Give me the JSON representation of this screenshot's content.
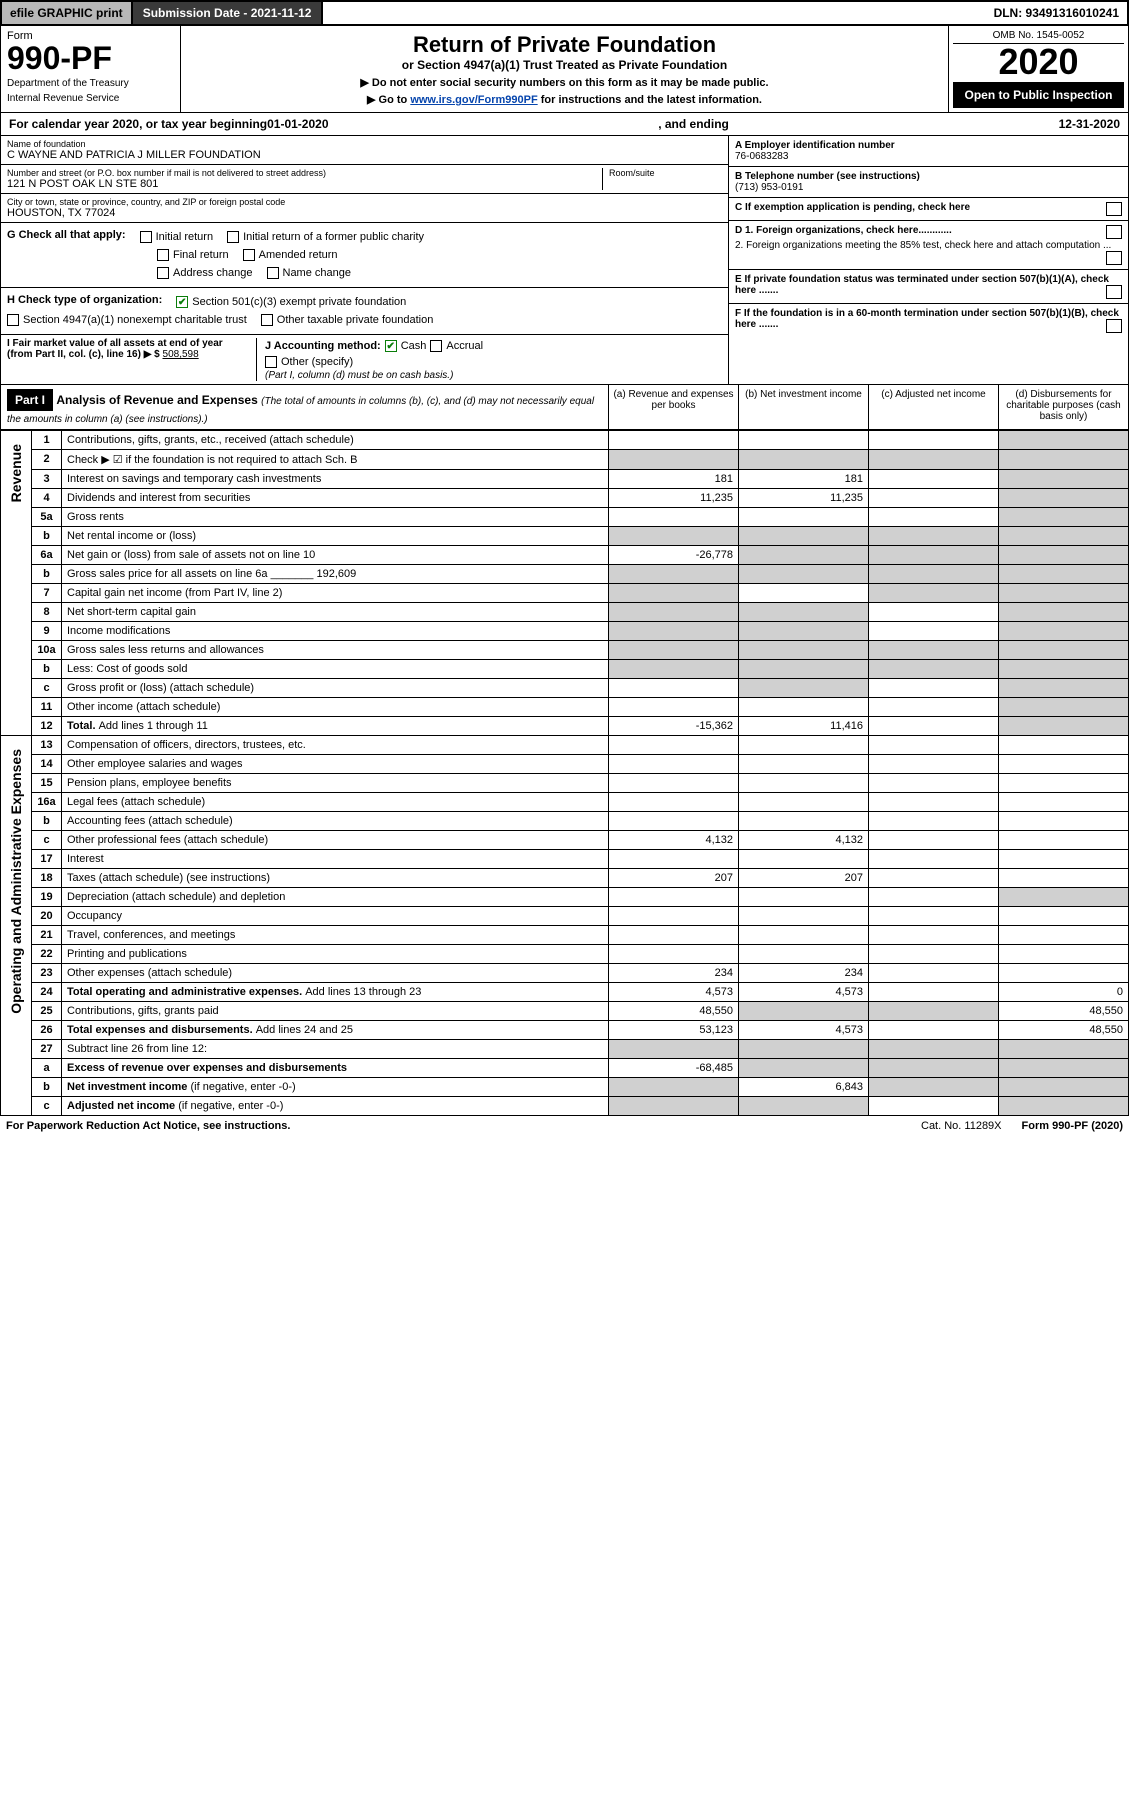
{
  "topbar": {
    "efile": "efile GRAPHIC print",
    "submission": "Submission Date - 2021-11-12",
    "dln": "DLN: 93491316010241"
  },
  "header": {
    "form_word": "Form",
    "form_no": "990-PF",
    "dept": "Department of the Treasury",
    "irs": "Internal Revenue Service",
    "title": "Return of Private Foundation",
    "subtitle": "or Section 4947(a)(1) Trust Treated as Private Foundation",
    "note1": "▶ Do not enter social security numbers on this form as it may be made public.",
    "note2_prefix": "▶ Go to ",
    "note2_link": "www.irs.gov/Form990PF",
    "note2_suffix": " for instructions and the latest information.",
    "omb": "OMB No. 1545-0052",
    "year": "2020",
    "open": "Open to Public Inspection"
  },
  "cal": {
    "prefix": "For calendar year 2020, or tax year beginning ",
    "begin": "01-01-2020",
    "mid": " , and ending ",
    "end": "12-31-2020"
  },
  "foundation": {
    "name_label": "Name of foundation",
    "name": "C WAYNE AND PATRICIA J MILLER FOUNDATION",
    "addr_label": "Number and street (or P.O. box number if mail is not delivered to street address)",
    "addr": "121 N POST OAK LN STE 801",
    "room_label": "Room/suite",
    "city_label": "City or town, state or province, country, and ZIP or foreign postal code",
    "city": "HOUSTON, TX  77024"
  },
  "right_info": {
    "a_label": "A Employer identification number",
    "a_val": "76-0683283",
    "b_label": "B Telephone number (see instructions)",
    "b_val": "(713) 953-0191",
    "c_label": "C If exemption application is pending, check here",
    "d1": "D 1. Foreign organizations, check here............",
    "d2": "2. Foreign organizations meeting the 85% test, check here and attach computation ...",
    "e": "E  If private foundation status was terminated under section 507(b)(1)(A), check here .......",
    "f": "F  If the foundation is in a 60-month termination under section 507(b)(1)(B), check here .......",
    "g_label": "G Check all that apply:",
    "g_opts": [
      "Initial return",
      "Initial return of a former public charity",
      "Final return",
      "Amended return",
      "Address change",
      "Name change"
    ],
    "h_label": "H Check type of organization:",
    "h1": "Section 501(c)(3) exempt private foundation",
    "h2": "Section 4947(a)(1) nonexempt charitable trust",
    "h3": "Other taxable private foundation",
    "i_label": "I Fair market value of all assets at end of year (from Part II, col. (c), line 16) ▶ $",
    "i_val": "508,598",
    "j_label": "J Accounting method:",
    "j_cash": "Cash",
    "j_accrual": "Accrual",
    "j_other": "Other (specify)",
    "j_note": "(Part I, column (d) must be on cash basis.)"
  },
  "part1": {
    "label": "Part I",
    "title": "Analysis of Revenue and Expenses",
    "desc": "(The total of amounts in columns (b), (c), and (d) may not necessarily equal the amounts in column (a) (see instructions).)",
    "cols": {
      "a": "(a) Revenue and expenses per books",
      "b": "(b) Net investment income",
      "c": "(c) Adjusted net income",
      "d": "(d) Disbursements for charitable purposes (cash basis only)"
    }
  },
  "side_labels": {
    "rev": "Revenue",
    "oae": "Operating and Administrative Expenses"
  },
  "rows": [
    {
      "n": "1",
      "d": "Contributions, gifts, grants, etc., received (attach schedule)",
      "a": "",
      "b": "",
      "c": "",
      "dd": "",
      "shade_d": true
    },
    {
      "n": "2",
      "d": "Check ▶ ☑ if the foundation is not required to attach Sch. B",
      "a": "",
      "b": "",
      "c": "",
      "dd": "",
      "shade_a": true,
      "shade_b": true,
      "shade_c": true,
      "shade_d": true,
      "bold_not": true
    },
    {
      "n": "3",
      "d": "Interest on savings and temporary cash investments",
      "a": "181",
      "b": "181",
      "c": "",
      "dd": "",
      "shade_d": true
    },
    {
      "n": "4",
      "d": "Dividends and interest from securities",
      "a": "11,235",
      "b": "11,235",
      "c": "",
      "dd": "",
      "shade_d": true
    },
    {
      "n": "5a",
      "d": "Gross rents",
      "a": "",
      "b": "",
      "c": "",
      "dd": "",
      "shade_d": true
    },
    {
      "n": "b",
      "d": "Net rental income or (loss)",
      "a": "",
      "b": "",
      "c": "",
      "dd": "",
      "shade_a": true,
      "shade_b": true,
      "shade_c": true,
      "shade_d": true
    },
    {
      "n": "6a",
      "d": "Net gain or (loss) from sale of assets not on line 10",
      "a": "-26,778",
      "b": "",
      "c": "",
      "dd": "",
      "shade_b": true,
      "shade_c": true,
      "shade_d": true
    },
    {
      "n": "b",
      "d": "Gross sales price for all assets on line 6a _______ 192,609",
      "a": "",
      "b": "",
      "c": "",
      "dd": "",
      "shade_a": true,
      "shade_b": true,
      "shade_c": true,
      "shade_d": true
    },
    {
      "n": "7",
      "d": "Capital gain net income (from Part IV, line 2)",
      "a": "",
      "b": "",
      "c": "",
      "dd": "",
      "shade_a": true,
      "shade_c": true,
      "shade_d": true
    },
    {
      "n": "8",
      "d": "Net short-term capital gain",
      "a": "",
      "b": "",
      "c": "",
      "dd": "",
      "shade_a": true,
      "shade_b": true,
      "shade_d": true
    },
    {
      "n": "9",
      "d": "Income modifications",
      "a": "",
      "b": "",
      "c": "",
      "dd": "",
      "shade_a": true,
      "shade_b": true,
      "shade_d": true
    },
    {
      "n": "10a",
      "d": "Gross sales less returns and allowances",
      "a": "",
      "b": "",
      "c": "",
      "dd": "",
      "shade_a": true,
      "shade_b": true,
      "shade_c": true,
      "shade_d": true
    },
    {
      "n": "b",
      "d": "Less: Cost of goods sold",
      "a": "",
      "b": "",
      "c": "",
      "dd": "",
      "shade_a": true,
      "shade_b": true,
      "shade_c": true,
      "shade_d": true
    },
    {
      "n": "c",
      "d": "Gross profit or (loss) (attach schedule)",
      "a": "",
      "b": "",
      "c": "",
      "dd": "",
      "shade_b": true,
      "shade_d": true
    },
    {
      "n": "11",
      "d": "Other income (attach schedule)",
      "a": "",
      "b": "",
      "c": "",
      "dd": "",
      "shade_d": true
    },
    {
      "n": "12",
      "d_bold": "Total. ",
      "d": "Add lines 1 through 11",
      "a": "-15,362",
      "b": "11,416",
      "c": "",
      "dd": "",
      "shade_d": true,
      "bold": true
    },
    {
      "n": "13",
      "d": "Compensation of officers, directors, trustees, etc.",
      "a": "",
      "b": "",
      "c": "",
      "dd": ""
    },
    {
      "n": "14",
      "d": "Other employee salaries and wages",
      "a": "",
      "b": "",
      "c": "",
      "dd": ""
    },
    {
      "n": "15",
      "d": "Pension plans, employee benefits",
      "a": "",
      "b": "",
      "c": "",
      "dd": ""
    },
    {
      "n": "16a",
      "d": "Legal fees (attach schedule)",
      "a": "",
      "b": "",
      "c": "",
      "dd": ""
    },
    {
      "n": "b",
      "d": "Accounting fees (attach schedule)",
      "a": "",
      "b": "",
      "c": "",
      "dd": ""
    },
    {
      "n": "c",
      "d": "Other professional fees (attach schedule)",
      "a": "4,132",
      "b": "4,132",
      "c": "",
      "dd": ""
    },
    {
      "n": "17",
      "d": "Interest",
      "a": "",
      "b": "",
      "c": "",
      "dd": ""
    },
    {
      "n": "18",
      "d": "Taxes (attach schedule) (see instructions)",
      "a": "207",
      "b": "207",
      "c": "",
      "dd": ""
    },
    {
      "n": "19",
      "d": "Depreciation (attach schedule) and depletion",
      "a": "",
      "b": "",
      "c": "",
      "dd": "",
      "shade_d": true
    },
    {
      "n": "20",
      "d": "Occupancy",
      "a": "",
      "b": "",
      "c": "",
      "dd": ""
    },
    {
      "n": "21",
      "d": "Travel, conferences, and meetings",
      "a": "",
      "b": "",
      "c": "",
      "dd": ""
    },
    {
      "n": "22",
      "d": "Printing and publications",
      "a": "",
      "b": "",
      "c": "",
      "dd": ""
    },
    {
      "n": "23",
      "d": "Other expenses (attach schedule)",
      "a": "234",
      "b": "234",
      "c": "",
      "dd": ""
    },
    {
      "n": "24",
      "d_bold": "Total operating and administrative expenses. ",
      "d": "Add lines 13 through 23",
      "a": "4,573",
      "b": "4,573",
      "c": "",
      "dd": "0",
      "bold": true
    },
    {
      "n": "25",
      "d": "Contributions, gifts, grants paid",
      "a": "48,550",
      "b": "",
      "c": "",
      "dd": "48,550",
      "shade_b": true,
      "shade_c": true
    },
    {
      "n": "26",
      "d_bold": "Total expenses and disbursements. ",
      "d": "Add lines 24 and 25",
      "a": "53,123",
      "b": "4,573",
      "c": "",
      "dd": "48,550",
      "bold": true
    },
    {
      "n": "27",
      "d": "Subtract line 26 from line 12:",
      "a": "",
      "b": "",
      "c": "",
      "dd": "",
      "shade_a": true,
      "shade_b": true,
      "shade_c": true,
      "shade_d": true
    },
    {
      "n": "a",
      "d_bold": "Excess of revenue over expenses and disbursements",
      "d": "",
      "a": "-68,485",
      "b": "",
      "c": "",
      "dd": "",
      "shade_b": true,
      "shade_c": true,
      "shade_d": true,
      "bold": true
    },
    {
      "n": "b",
      "d_bold": "Net investment income ",
      "d": "(if negative, enter -0-)",
      "a": "",
      "b": "6,843",
      "c": "",
      "dd": "",
      "shade_a": true,
      "shade_c": true,
      "shade_d": true,
      "bold": true
    },
    {
      "n": "c",
      "d_bold": "Adjusted net income ",
      "d": "(if negative, enter -0-)",
      "a": "",
      "b": "",
      "c": "",
      "dd": "",
      "shade_a": true,
      "shade_b": true,
      "shade_d": true,
      "bold": true
    }
  ],
  "footer": {
    "left": "For Paperwork Reduction Act Notice, see instructions.",
    "mid": "Cat. No. 11289X",
    "right": "Form 990-PF (2020)"
  },
  "colors": {
    "topbar_grey": "#b8b8b8",
    "topbar_dark": "#3a3a3a",
    "link": "#0645ad",
    "shade": "#d0d0d0",
    "check": "#0a7d0a"
  }
}
